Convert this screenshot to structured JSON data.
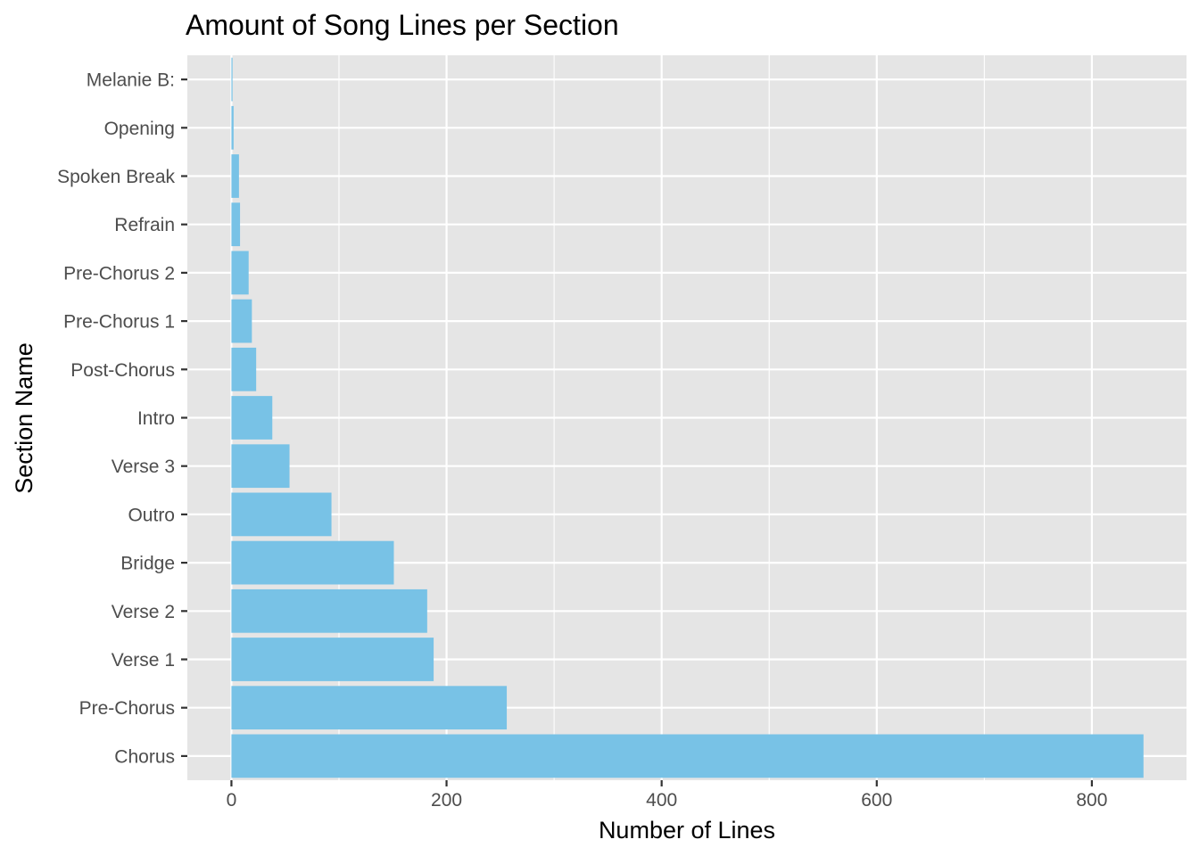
{
  "chart_data": {
    "type": "bar",
    "orientation": "horizontal",
    "title": "Amount of Song Lines per Section",
    "xlabel": "Number of Lines",
    "ylabel": "Section Name",
    "categories": [
      "Chorus",
      "Pre-Chorus",
      "Verse 1",
      "Verse 2",
      "Bridge",
      "Outro",
      "Verse 3",
      "Intro",
      "Post-Chorus",
      "Pre-Chorus 1",
      "Pre-Chorus 2",
      "Refrain",
      "Spoken Break",
      "Opening",
      "Melanie B:"
    ],
    "values": [
      848,
      256,
      188,
      182,
      151,
      93,
      54,
      38,
      23,
      19,
      16,
      8,
      7,
      2,
      1
    ],
    "xlim": [
      -41,
      888
    ],
    "xticks": [
      0,
      200,
      400,
      600,
      800
    ],
    "xtick_labels": [
      "0",
      "200",
      "400",
      "600",
      "800"
    ],
    "grid": true,
    "bar_color": "#78C2E6",
    "panel_color": "#E5E5E5",
    "grid_color": "#FFFFFF",
    "tick_color": "#333333"
  }
}
